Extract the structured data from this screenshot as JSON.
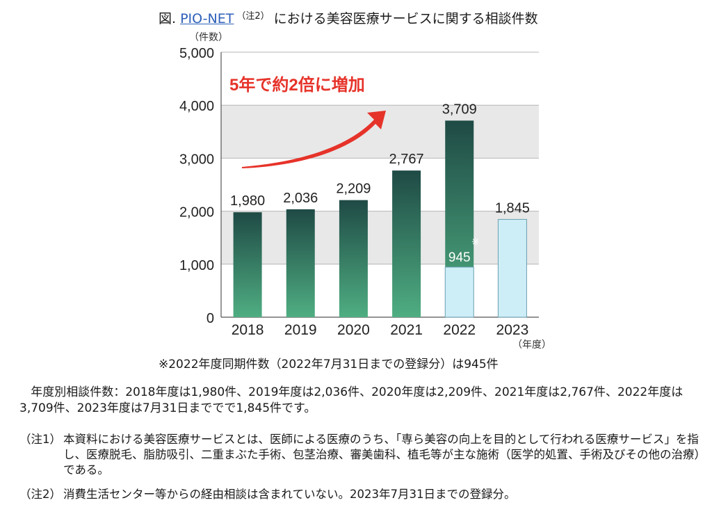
{
  "title": {
    "prefix": "図.",
    "link_text": "PIO-NET",
    "superscript": "（注2）",
    "rest": "における美容医療サービスに関する相談件数"
  },
  "chart_data": {
    "type": "bar",
    "categories": [
      "2018",
      "2019",
      "2020",
      "2021",
      "2022",
      "2023"
    ],
    "values": [
      1980,
      2036,
      2209,
      2767,
      3709,
      1845
    ],
    "value_labels": [
      "1,980",
      "2,036",
      "2,209",
      "2,767",
      "3,709",
      "1,845"
    ],
    "same_period_2022": {
      "value": 945,
      "label": "945",
      "mark": "※"
    },
    "ylabel": "（件数）",
    "xlabel": "（年度）",
    "ylim": [
      0,
      5000
    ],
    "yticks": [
      0,
      1000,
      2000,
      3000,
      4000,
      5000
    ],
    "ytick_labels": [
      "0",
      "1,000",
      "2,000",
      "3,000",
      "4,000",
      "5,000"
    ],
    "annotation": "5年で約2倍に増加",
    "grid": true,
    "colors": {
      "bar_top": "#1f4a45",
      "bar_bottom": "#4fae82",
      "light_bar": "#cdeef7",
      "light_border": "#6a9fb0",
      "band": "#e8e8e8",
      "arrow": "#e6332a"
    }
  },
  "chart_note": "※2022年度同期件数（2022年7月31日までの登録分）は945件",
  "summary": "年度別相談件数：2018年度は1,980件、2019年度は2,036件、2020年度は2,209件、2021年度は2,767件、2022年度は3,709件、2023年度は7月31日まででで1,845件です。",
  "footnotes": [
    {
      "label": "（注1）",
      "text": "本資料における美容医療サービスとは、医師による医療のうち、「専ら美容の向上を目的として行われる医療サービス」を指し、医療脱毛、脂肪吸引、二重まぶた手術、包茎治療、審美歯科、植毛等が主な施術（医学的処置、手術及びその他の治療）である。"
    },
    {
      "label": "（注2）",
      "text": "消費生活センター等からの経由相談は含まれていない。2023年7月31日までの登録分。"
    }
  ]
}
